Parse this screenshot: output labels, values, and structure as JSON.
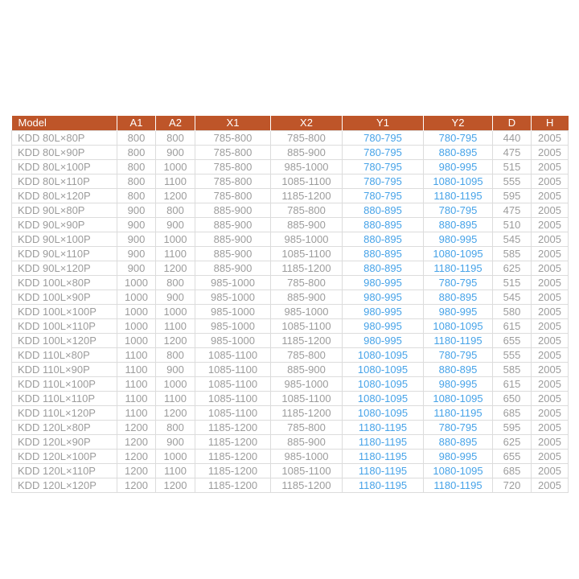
{
  "colors": {
    "header_background": "#be5529",
    "header_text": "#ffffff",
    "cell_text": "#9c9c9c",
    "highlight_text": "#47a3e8",
    "grid_line": "#dcdcdc",
    "page_background": "#ffffff"
  },
  "chart_data": {
    "type": "table",
    "title": "",
    "columns": [
      "Model",
      "A1",
      "A2",
      "X1",
      "X2",
      "Y1",
      "Y2",
      "D",
      "H"
    ],
    "highlight_columns": [
      "Y1",
      "Y2"
    ],
    "rows": [
      [
        "KDD 80L×80P",
        "800",
        "800",
        "785-800",
        "785-800",
        "780-795",
        "780-795",
        "440",
        "2005"
      ],
      [
        "KDD 80L×90P",
        "800",
        "900",
        "785-800",
        "885-900",
        "780-795",
        "880-895",
        "475",
        "2005"
      ],
      [
        "KDD 80L×100P",
        "800",
        "1000",
        "785-800",
        "985-1000",
        "780-795",
        "980-995",
        "515",
        "2005"
      ],
      [
        "KDD 80L×110P",
        "800",
        "1100",
        "785-800",
        "1085-1100",
        "780-795",
        "1080-1095",
        "555",
        "2005"
      ],
      [
        "KDD 80L×120P",
        "800",
        "1200",
        "785-800",
        "1185-1200",
        "780-795",
        "1180-1195",
        "595",
        "2005"
      ],
      [
        "KDD 90L×80P",
        "900",
        "800",
        "885-900",
        "785-800",
        "880-895",
        "780-795",
        "475",
        "2005"
      ],
      [
        "KDD 90L×90P",
        "900",
        "900",
        "885-900",
        "885-900",
        "880-895",
        "880-895",
        "510",
        "2005"
      ],
      [
        "KDD 90L×100P",
        "900",
        "1000",
        "885-900",
        "985-1000",
        "880-895",
        "980-995",
        "545",
        "2005"
      ],
      [
        "KDD 90L×110P",
        "900",
        "1100",
        "885-900",
        "1085-1100",
        "880-895",
        "1080-1095",
        "585",
        "2005"
      ],
      [
        "KDD 90L×120P",
        "900",
        "1200",
        "885-900",
        "1185-1200",
        "880-895",
        "1180-1195",
        "625",
        "2005"
      ],
      [
        "KDD 100L×80P",
        "1000",
        "800",
        "985-1000",
        "785-800",
        "980-995",
        "780-795",
        "515",
        "2005"
      ],
      [
        "KDD 100L×90P",
        "1000",
        "900",
        "985-1000",
        "885-900",
        "980-995",
        "880-895",
        "545",
        "2005"
      ],
      [
        "KDD 100L×100P",
        "1000",
        "1000",
        "985-1000",
        "985-1000",
        "980-995",
        "980-995",
        "580",
        "2005"
      ],
      [
        "KDD 100L×110P",
        "1000",
        "1100",
        "985-1000",
        "1085-1100",
        "980-995",
        "1080-1095",
        "615",
        "2005"
      ],
      [
        "KDD 100L×120P",
        "1000",
        "1200",
        "985-1000",
        "1185-1200",
        "980-995",
        "1180-1195",
        "655",
        "2005"
      ],
      [
        "KDD 110L×80P",
        "1100",
        "800",
        "1085-1100",
        "785-800",
        "1080-1095",
        "780-795",
        "555",
        "2005"
      ],
      [
        "KDD 110L×90P",
        "1100",
        "900",
        "1085-1100",
        "885-900",
        "1080-1095",
        "880-895",
        "585",
        "2005"
      ],
      [
        "KDD 110L×100P",
        "1100",
        "1000",
        "1085-1100",
        "985-1000",
        "1080-1095",
        "980-995",
        "615",
        "2005"
      ],
      [
        "KDD 110L×110P",
        "1100",
        "1100",
        "1085-1100",
        "1085-1100",
        "1080-1095",
        "1080-1095",
        "650",
        "2005"
      ],
      [
        "KDD 110L×120P",
        "1100",
        "1200",
        "1085-1100",
        "1185-1200",
        "1080-1095",
        "1180-1195",
        "685",
        "2005"
      ],
      [
        "KDD 120L×80P",
        "1200",
        "800",
        "1185-1200",
        "785-800",
        "1180-1195",
        "780-795",
        "595",
        "2005"
      ],
      [
        "KDD 120L×90P",
        "1200",
        "900",
        "1185-1200",
        "885-900",
        "1180-1195",
        "880-895",
        "625",
        "2005"
      ],
      [
        "KDD 120L×100P",
        "1200",
        "1000",
        "1185-1200",
        "985-1000",
        "1180-1195",
        "980-995",
        "655",
        "2005"
      ],
      [
        "KDD 120L×110P",
        "1200",
        "1100",
        "1185-1200",
        "1085-1100",
        "1180-1195",
        "1080-1095",
        "685",
        "2005"
      ],
      [
        "KDD 120L×120P",
        "1200",
        "1200",
        "1185-1200",
        "1185-1200",
        "1180-1195",
        "1180-1195",
        "720",
        "2005"
      ]
    ]
  }
}
